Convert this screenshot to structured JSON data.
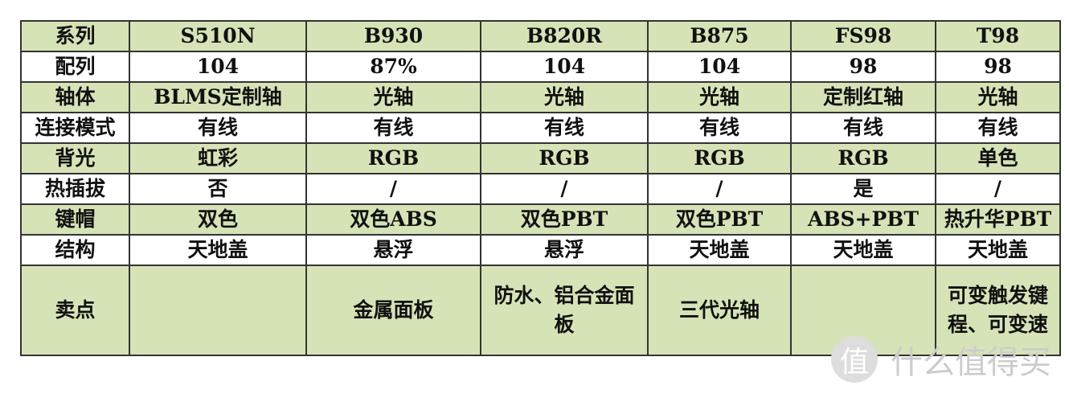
{
  "table": {
    "rows": [
      [
        "系列",
        "S510N",
        "B930",
        "B820R",
        "B875",
        "FS98",
        "T98"
      ],
      [
        "配列",
        "104",
        "87%",
        "104",
        "104",
        "98",
        "98"
      ],
      [
        "轴体",
        "BLMS定制轴",
        "光轴",
        "光轴",
        "光轴",
        "定制红轴",
        "光轴"
      ],
      [
        "连接模式",
        "有线",
        "有线",
        "有线",
        "有线",
        "有线",
        "有线"
      ],
      [
        "背光",
        "虹彩",
        "RGB",
        "RGB",
        "RGB",
        "RGB",
        "单色"
      ],
      [
        "热插拔",
        "否",
        "/",
        "/",
        "/",
        "是",
        "/"
      ],
      [
        "键帽",
        "双色",
        "双色ABS",
        "双色PBT",
        "双色PBT",
        "ABS+PBT",
        "热升华PBT"
      ],
      [
        "结构",
        "天地盖",
        "悬浮",
        "悬浮",
        "天地盖",
        "天地盖",
        "天地盖"
      ],
      [
        "卖点",
        null,
        "金属面板",
        "防水、铝合金面板",
        "三代光轴",
        null,
        "可变触发键程、可变速"
      ]
    ]
  },
  "watermark": {
    "icon": "值",
    "text": "什么值得买"
  }
}
